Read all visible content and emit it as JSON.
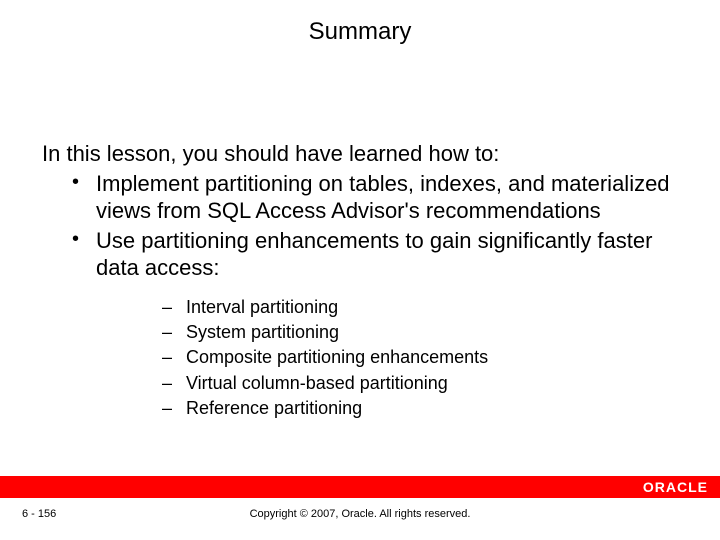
{
  "title": "Summary",
  "intro": "In this lesson, you should have learned how to:",
  "bullets": [
    "Implement partitioning on tables, indexes, and materialized views from SQL Access Advisor's recommendations",
    "Use partitioning enhancements to gain significantly faster data access:"
  ],
  "subbullets": [
    "Interval partitioning",
    "System partitioning",
    "Composite partitioning enhancements",
    "Virtual column-based partitioning",
    "Reference partitioning"
  ],
  "footer": {
    "page_number": "6 - 156",
    "copyright": "Copyright © 2007, Oracle. All rights reserved.",
    "logo_text": "ORACLE",
    "bar_color": "#ff0000",
    "logo_color": "#ffffff"
  },
  "colors": {
    "background": "#ffffff",
    "text": "#000000"
  },
  "typography": {
    "title_fontsize": 24,
    "body_fontsize": 22,
    "sub_fontsize": 18,
    "footer_fontsize": 11
  }
}
